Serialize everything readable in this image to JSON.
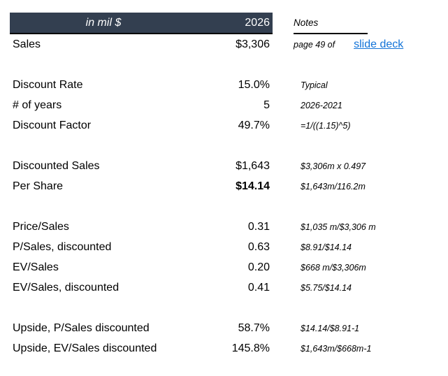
{
  "colors": {
    "header_bg": "#333F50",
    "header_text": "#FFFFFF",
    "link_blue": "#1273D8",
    "body_text": "#000000"
  },
  "header": {
    "title": "in mil $",
    "year": "2026",
    "notes_label": "Notes"
  },
  "rows": [
    {
      "label": "Sales",
      "value": "$3,306",
      "note_prefix": "page 49 of",
      "note_link": "slide deck"
    },
    {
      "label": "Discount Rate",
      "value": "15.0%",
      "note": "Typical"
    },
    {
      "label": "# of years",
      "value": "5",
      "note": "2026-2021"
    },
    {
      "label": "Discount Factor",
      "value": "49.7%",
      "note": "=1/((1.15)^5)"
    },
    {
      "label": "Discounted Sales",
      "value": "$1,643",
      "note": "$3,306m x 0.497"
    },
    {
      "label": "Per Share",
      "value": "$14.14",
      "note": "$1,643m/116.2m"
    },
    {
      "label": "Price/Sales",
      "value": "0.31",
      "note": "$1,035 m/$3,306 m"
    },
    {
      "label": "P/Sales, discounted",
      "value": "0.63",
      "note": "$8.91/$14.14"
    },
    {
      "label": "EV/Sales",
      "value": "0.20",
      "note": "$668 m/$3,306m"
    },
    {
      "label": "EV/Sales, discounted",
      "value": "0.41",
      "note": "$5.75/$14.14"
    },
    {
      "label": "Upside, P/Sales discounted",
      "value": "58.7%",
      "note": "$14.14/$8.91-1"
    },
    {
      "label": "Upside, EV/Sales discounted",
      "value": "145.8%",
      "note": "$1,643m/$668m-1"
    }
  ]
}
